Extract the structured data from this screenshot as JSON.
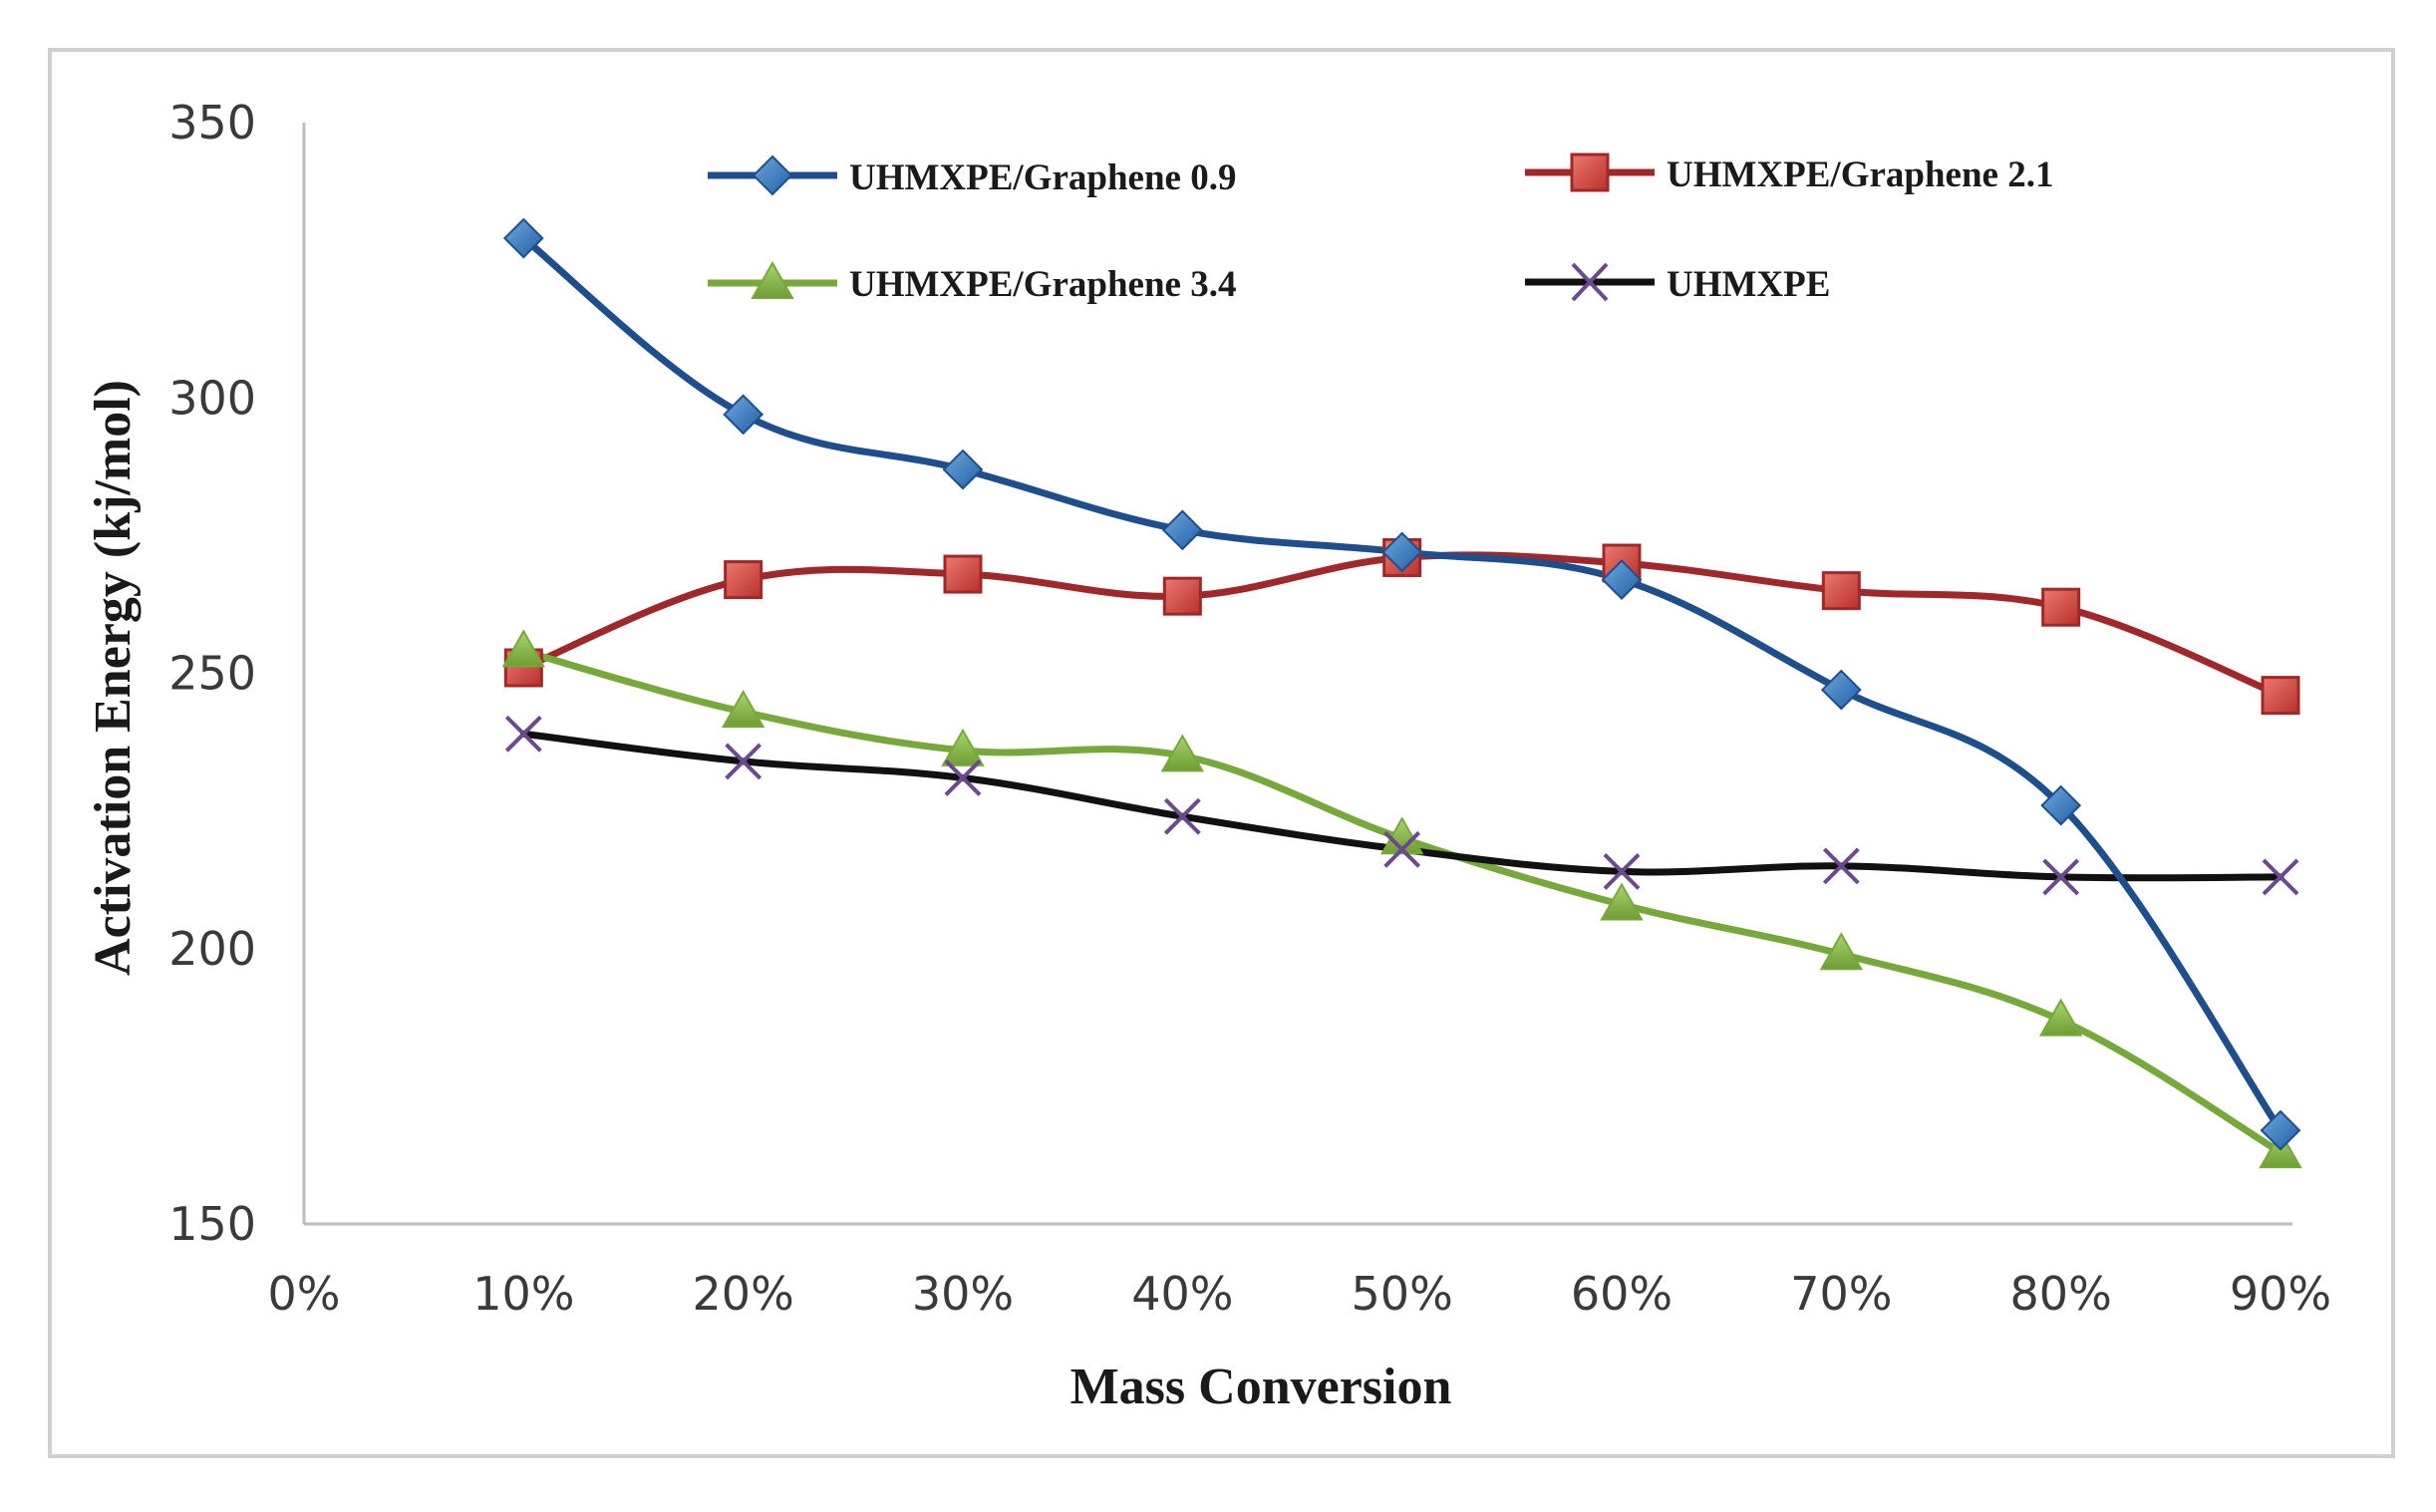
{
  "chart_data": {
    "type": "line",
    "title": "",
    "xlabel": "Mass Conversion",
    "ylabel": "Activation Energy (kj/mol)",
    "categories": [
      "0%",
      "10%",
      "20%",
      "30%",
      "40%",
      "50%",
      "60%",
      "70%",
      "80%",
      "90%"
    ],
    "yticks": [
      "150",
      "200",
      "250",
      "300",
      "350"
    ],
    "ylim": [
      150,
      350
    ],
    "grid": false,
    "legend_position": "top",
    "series": [
      {
        "name": "UHMXPE/Graphene 0.9",
        "color": "#1f4e8c",
        "marker_color": "#2e75b6",
        "marker": "diamond",
        "values": [
          null,
          329,
          297,
          287,
          276,
          272,
          267,
          247,
          226,
          167
        ]
      },
      {
        "name": "UHMXPE/Graphene 2.1",
        "color": "#a0282a",
        "marker_color": "#d9433f",
        "marker": "square",
        "values": [
          null,
          251,
          267,
          268,
          264,
          271,
          270,
          265,
          262,
          246
        ]
      },
      {
        "name": "UHMXPE/Graphene 3.4",
        "color": "#76a83a",
        "marker_color": "#8cc04f",
        "marker": "triangle",
        "values": [
          null,
          254,
          243,
          236,
          235,
          220,
          208,
          199,
          187,
          163
        ]
      },
      {
        "name": "UHMXPE",
        "color": "#111111",
        "marker_color": "#6a4a8c",
        "marker": "x",
        "values": [
          null,
          239,
          234,
          231,
          224,
          218,
          214,
          215,
          213,
          213
        ]
      }
    ]
  }
}
